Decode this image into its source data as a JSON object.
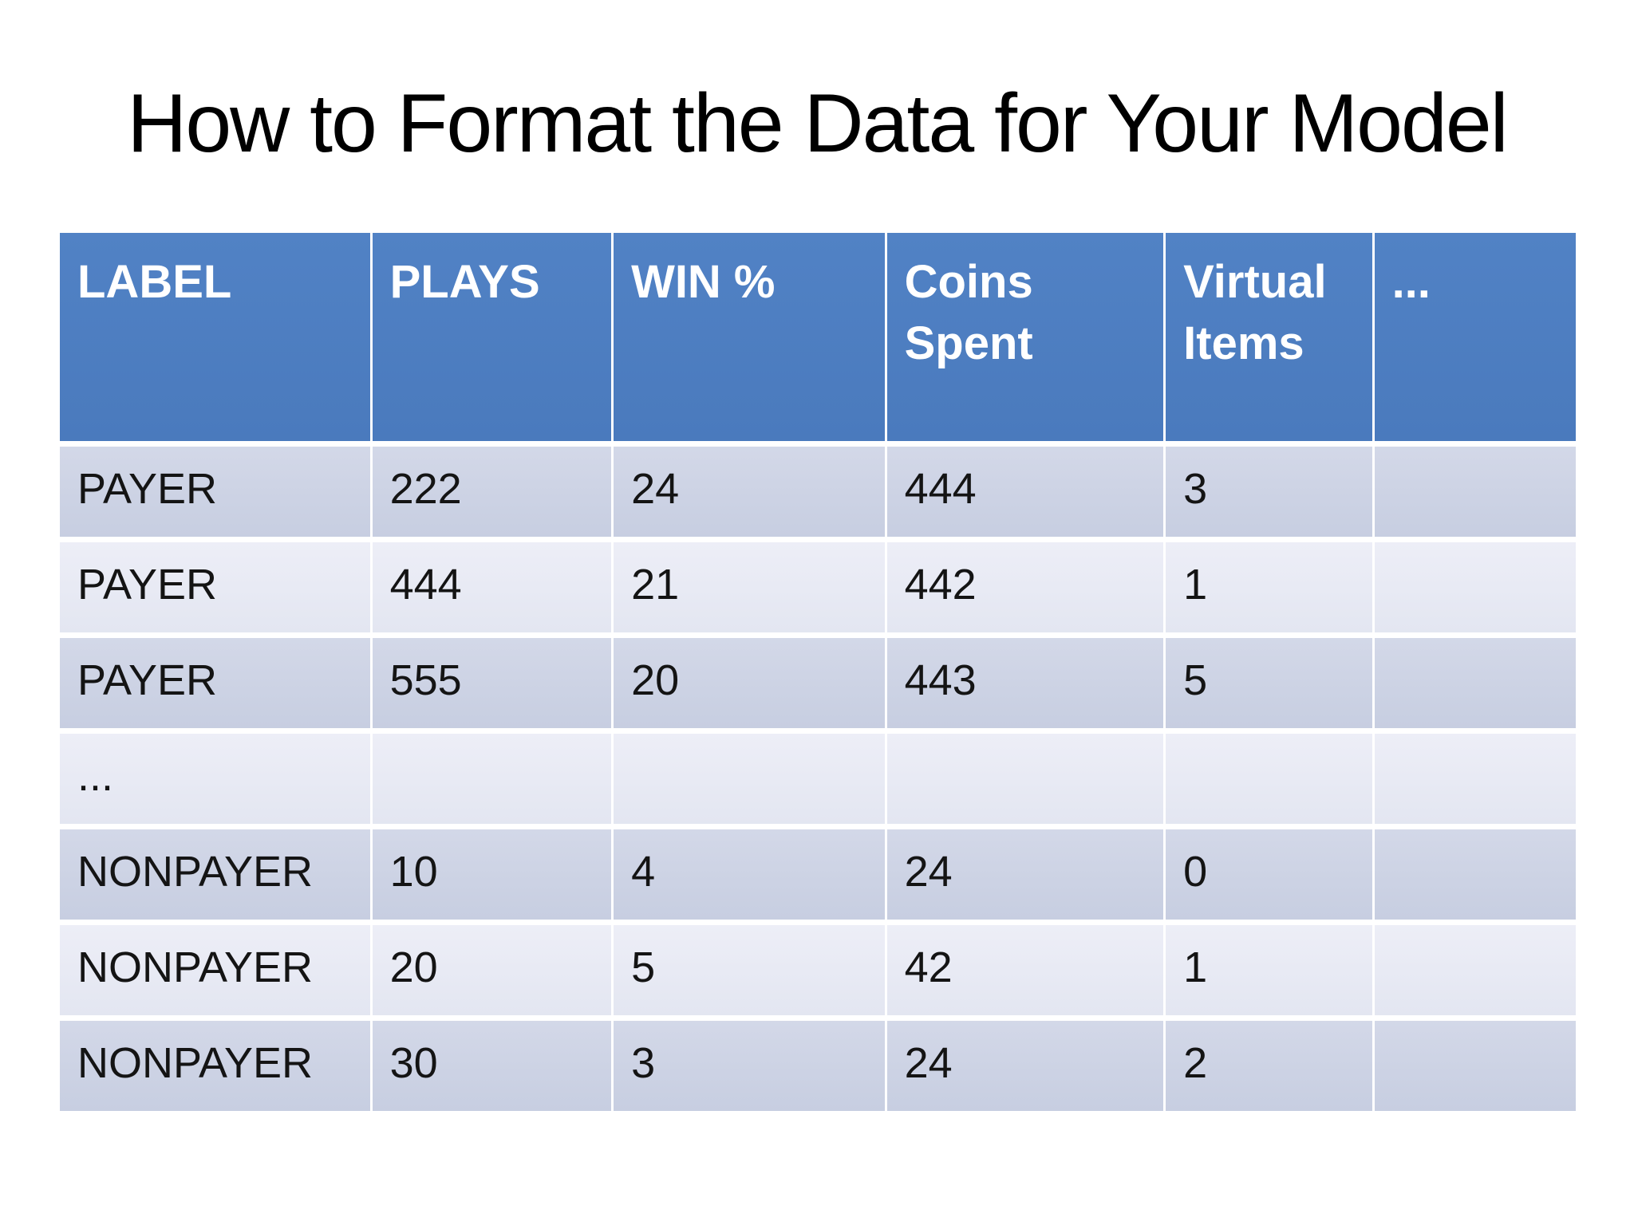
{
  "slide": {
    "title": "How to Format the Data for Your Model"
  },
  "table": {
    "columns": [
      {
        "key": "label",
        "label": "LABEL"
      },
      {
        "key": "plays",
        "label": "PLAYS"
      },
      {
        "key": "win-percent",
        "label": "WIN %"
      },
      {
        "key": "coins-spent",
        "label": "Coins Spent"
      },
      {
        "key": "virtual-items",
        "label": "Virtual Items"
      },
      {
        "key": "ellipsis",
        "label": "..."
      }
    ],
    "rows": [
      [
        "PAYER",
        "222",
        "24",
        "444",
        "3",
        ""
      ],
      [
        "PAYER",
        "444",
        "21",
        "442",
        "1",
        ""
      ],
      [
        "PAYER",
        "555",
        "20",
        "443",
        "5",
        ""
      ],
      [
        "...",
        "",
        "",
        "",
        "",
        ""
      ],
      [
        "NONPAYER",
        "10",
        "4",
        "24",
        "0",
        ""
      ],
      [
        "NONPAYER",
        "20",
        "5",
        "42",
        "1",
        ""
      ],
      [
        "NONPAYER",
        "30",
        "3",
        "24",
        "2",
        ""
      ]
    ],
    "colors": {
      "header_bg": "#4d7ec2",
      "row_band_dark": "#cdd3e4",
      "row_band_light": "#e9ebf4",
      "header_text": "#ffffff",
      "body_text": "#141414"
    }
  }
}
